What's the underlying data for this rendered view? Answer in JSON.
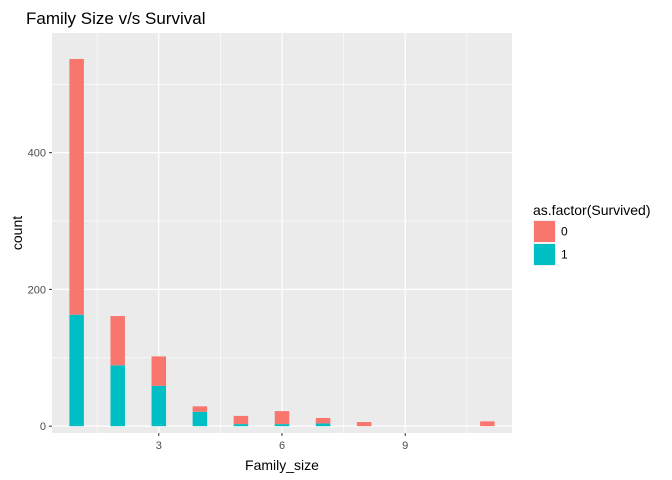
{
  "chart_data": {
    "type": "bar",
    "stacked": true,
    "title": "Family Size v/s Survival",
    "xlabel": "Family_size",
    "ylabel": "count",
    "xlim": [
      0.4,
      11.6
    ],
    "ylim": [
      -10,
      575
    ],
    "x_ticks": [
      3,
      6,
      9
    ],
    "x_tick_labels": [
      "3",
      "6",
      "9"
    ],
    "y_ticks": [
      0,
      200,
      400
    ],
    "y_tick_labels": [
      "0",
      "200",
      "400"
    ],
    "grid": true,
    "legend_position": "right",
    "legend": {
      "title": "as.factor(Survived)",
      "entries": [
        {
          "label": "0",
          "color": "#F8766D"
        },
        {
          "label": "1",
          "color": "#00BFC4"
        }
      ]
    },
    "x": [
      1,
      2,
      3,
      4,
      5,
      6,
      7,
      8,
      11
    ],
    "series": [
      {
        "name": "0",
        "color": "#F8766D",
        "values": [
          374,
          72,
          43,
          8,
          12,
          19,
          8,
          6,
          7
        ]
      },
      {
        "name": "1",
        "color": "#00BFC4",
        "values": [
          163,
          89,
          59,
          21,
          3,
          3,
          4,
          0,
          0
        ]
      }
    ]
  }
}
